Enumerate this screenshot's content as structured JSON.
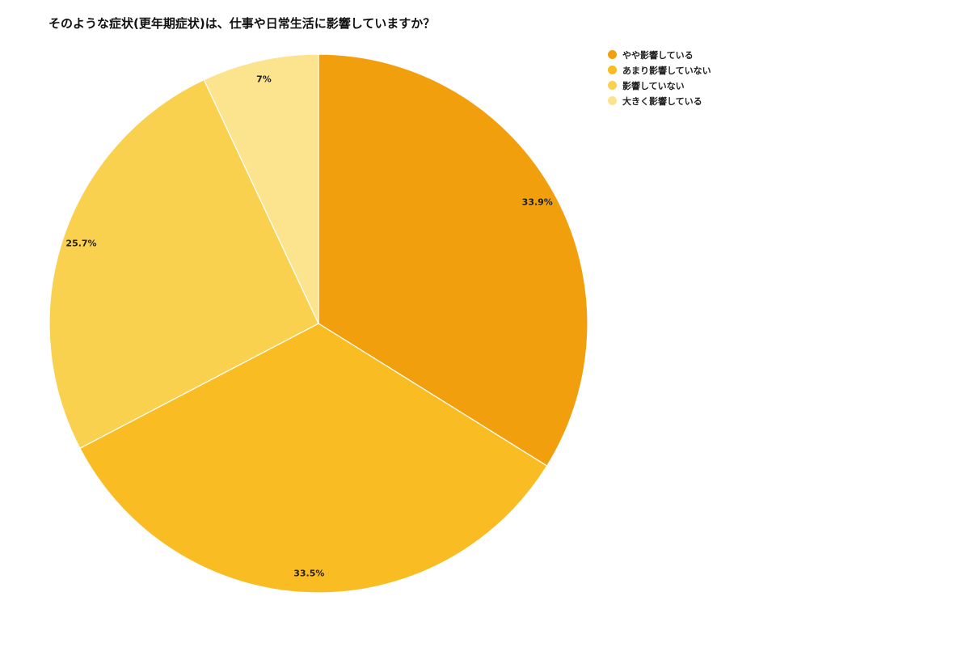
{
  "chart_data": {
    "type": "pie",
    "title": "そのような症状(更年期症状)は、仕事や日常生活に影響していますか？",
    "categories": [
      "やや影響している",
      "あまり影響していない",
      "影響していない",
      "大きく影響している"
    ],
    "values": [
      33.9,
      33.5,
      25.7,
      7
    ],
    "labels": [
      "33.9%",
      "33.5%",
      "25.7%",
      "7%"
    ],
    "colors": [
      "#F29F0D",
      "#F9BC22",
      "#F9D14F",
      "#FCE48F"
    ],
    "legend_position": "right-top",
    "start_angle": "top, clockwise"
  },
  "legend": {
    "items": [
      {
        "label": "やや影響している",
        "color": "#F29F0D"
      },
      {
        "label": "あまり影響していない",
        "color": "#F9BC22"
      },
      {
        "label": "影響していない",
        "color": "#F9D14F"
      },
      {
        "label": "大きく影響している",
        "color": "#FCE48F"
      }
    ]
  }
}
